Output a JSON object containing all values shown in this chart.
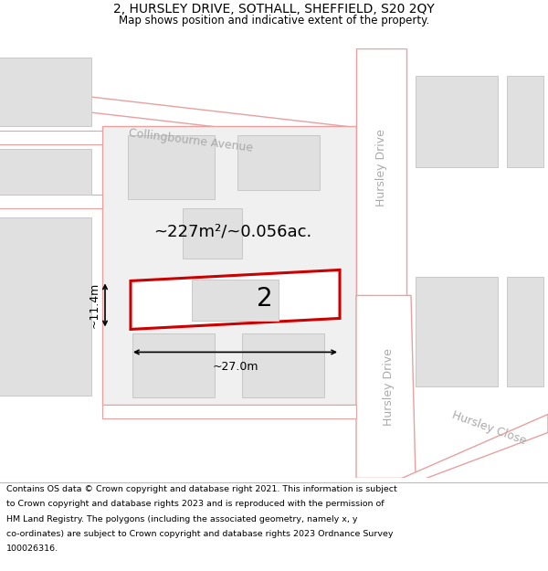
{
  "title": "2, HURSLEY DRIVE, SOTHALL, SHEFFIELD, S20 2QY",
  "subtitle": "Map shows position and indicative extent of the property.",
  "footer_lines": [
    "Contains OS data © Crown copyright and database right 2021. This information is subject",
    "to Crown copyright and database rights 2023 and is reproduced with the permission of",
    "HM Land Registry. The polygons (including the associated geometry, namely x, y",
    "co-ordinates) are subject to Crown copyright and database rights 2023 Ordnance Survey",
    "100026316."
  ],
  "map_bg": "#f2f2f2",
  "road_fill": "#ffffff",
  "road_color": "#e8a0a0",
  "block_fill": "#f0f0f0",
  "building_fill": "#e0e0e0",
  "building_edge": "#c8c8c8",
  "highlight_fill": "#ffffff",
  "highlight_edge": "#cc0000",
  "area_text": "~227m²/~0.056ac.",
  "number_text": "2",
  "width_text": "~27.0m",
  "height_text": "~11.4m",
  "collingbourne_label": "Collingbourne Avenue",
  "hursley_drive_label1": "Hursley Drive",
  "hursley_drive_label2": "Hursley Drive",
  "hursley_close_label": "Hursley Close",
  "label_color": "#aaaaaa",
  "footer_bg": "#f0f0f0",
  "title_fontsize": 10,
  "subtitle_fontsize": 8.5
}
